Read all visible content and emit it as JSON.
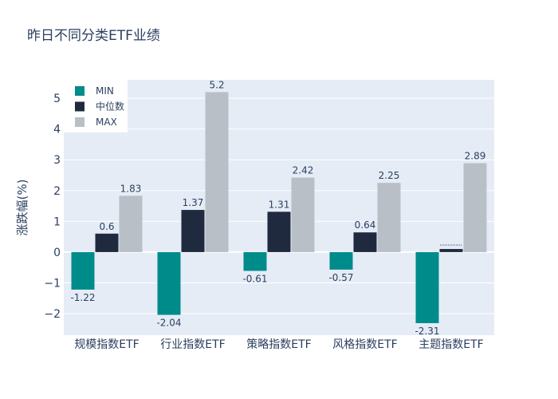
{
  "chart_data": {
    "type": "bar",
    "title": "昨日不同分类ETF业绩",
    "xlabel": "",
    "ylabel": "涨跌幅(%)",
    "ylim": [
      -2.7,
      5.6
    ],
    "yticks": [
      -2,
      -1,
      0,
      1,
      2,
      3,
      4,
      5
    ],
    "grid": true,
    "legend_position": "top-left",
    "categories": [
      "规模指数ETF",
      "行业指数ETF",
      "策略指数ETF",
      "风格指数ETF",
      "主题指数ETF"
    ],
    "series": [
      {
        "name": "MIN",
        "color": "#008b8b",
        "values": [
          -1.22,
          -2.04,
          -0.61,
          -0.57,
          -2.31
        ],
        "labels": [
          "-1.22",
          "-2.04",
          "-0.61",
          "-0.57",
          "-2.31"
        ]
      },
      {
        "name": "中位数",
        "color": "#1f2a3f",
        "values": [
          0.6,
          1.37,
          1.31,
          0.64,
          0.1
        ],
        "labels": [
          "0.6",
          "1.37",
          "1.31",
          "0.64",
          ""
        ]
      },
      {
        "name": "MAX",
        "color": "#b8bfc7",
        "values": [
          1.83,
          5.2,
          2.42,
          2.25,
          2.89
        ],
        "labels": [
          "1.83",
          "5.2",
          "2.42",
          "2.25",
          "2.89"
        ]
      }
    ]
  }
}
